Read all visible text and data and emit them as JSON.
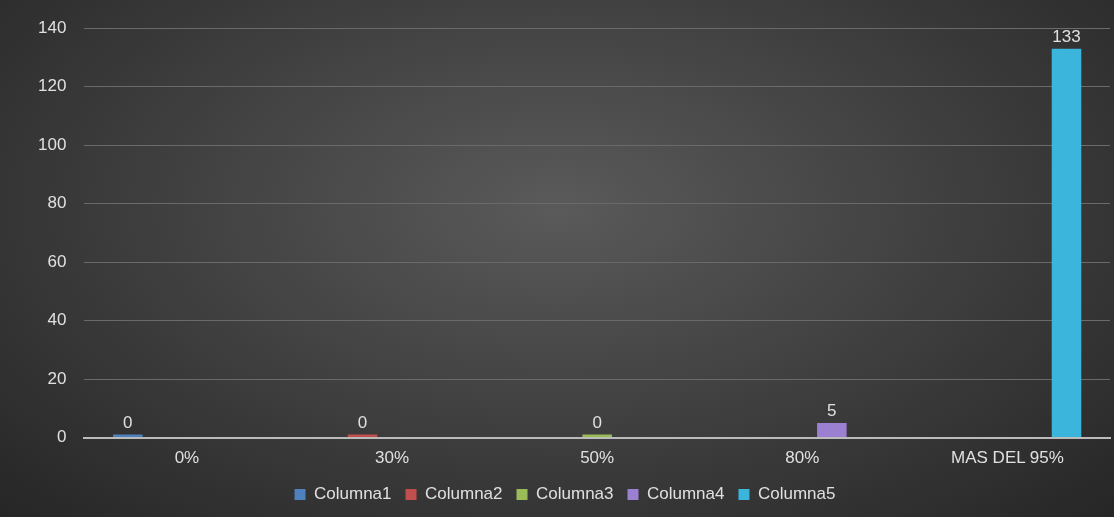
{
  "chart_data": {
    "type": "bar",
    "categories": [
      "0%",
      "30%",
      "50%",
      "80%",
      "MAS DEL 95%"
    ],
    "series": [
      {
        "name": "Columna1",
        "color": "#4f81bd",
        "values": [
          0,
          null,
          null,
          null,
          null
        ]
      },
      {
        "name": "Columna2",
        "color": "#c0504d",
        "values": [
          null,
          0,
          null,
          null,
          null
        ]
      },
      {
        "name": "Columna3",
        "color": "#9bbb59",
        "values": [
          null,
          null,
          0,
          null,
          null
        ]
      },
      {
        "name": "Columna4",
        "color": "#9b7fd0",
        "values": [
          null,
          null,
          null,
          5,
          null
        ]
      },
      {
        "name": "Columna5",
        "color": "#3cb5dc",
        "values": [
          null,
          null,
          null,
          null,
          133
        ]
      }
    ],
    "ylim": [
      0,
      140
    ],
    "yticks": [
      0,
      20,
      40,
      60,
      80,
      100,
      120,
      140
    ],
    "grid": "y",
    "legend": "bottom",
    "data_labels": true
  }
}
